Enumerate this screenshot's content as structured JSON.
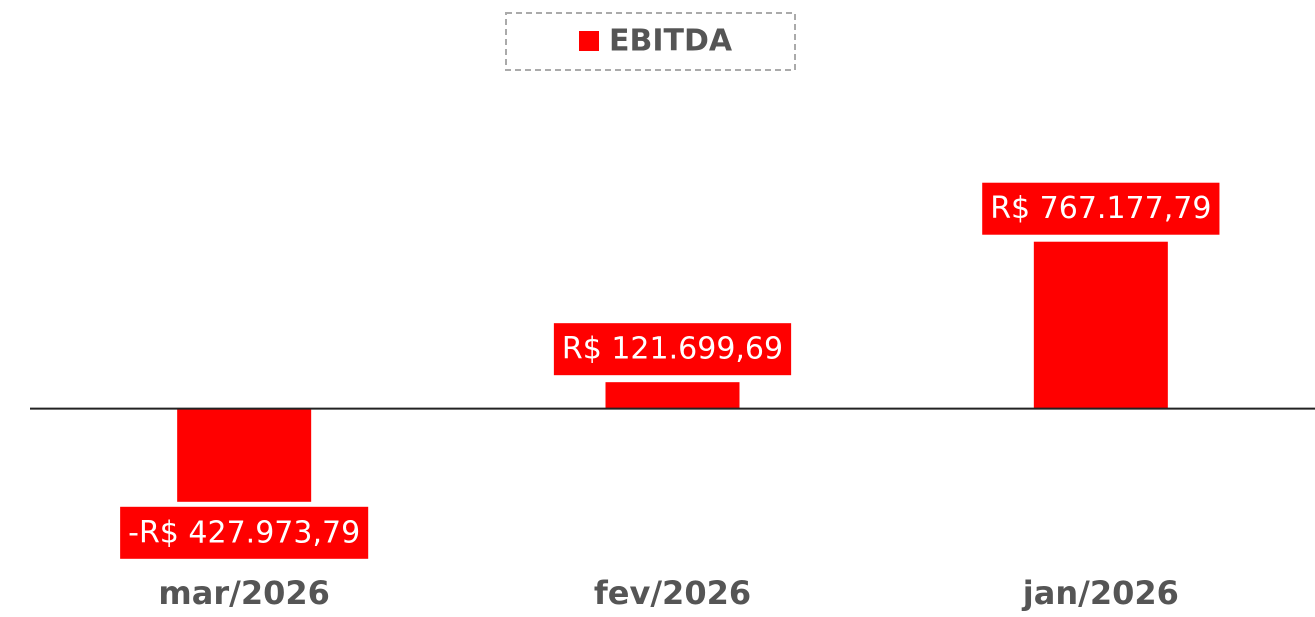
{
  "chart_data": {
    "type": "bar",
    "categories": [
      "mar/2026",
      "fev/2026",
      "jan/2026"
    ],
    "series": [
      {
        "name": "EBITDA",
        "color": "#ff0000",
        "values": [
          -427973.79,
          121699.69,
          767177.79
        ],
        "value_labels": [
          "-R$ 427.973,79",
          "R$ 121.699,69",
          "R$ 767.177,79"
        ]
      }
    ],
    "ylim": [
      -700000,
      1400000
    ],
    "legend": "top"
  }
}
